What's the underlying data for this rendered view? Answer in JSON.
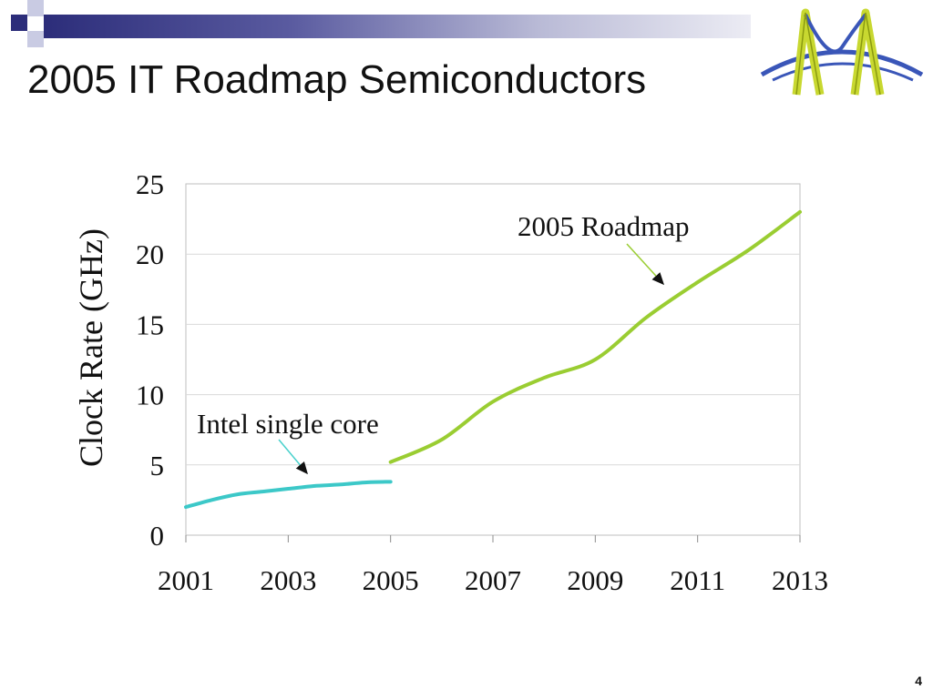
{
  "slide": {
    "title": "2005 IT Roadmap Semiconductors",
    "page_number": "4"
  },
  "colors": {
    "header_dark": "#2c2d7a",
    "deco_light": "#c9cbe3",
    "roadmap_series": "#9acd32",
    "intel_series": "#3cc8c8",
    "grid": "#d9d9d9"
  },
  "chart_data": {
    "type": "line",
    "title": "",
    "xlabel": "",
    "ylabel": "Clock Rate (GHz)",
    "xlim": [
      2001,
      2013
    ],
    "ylim": [
      0,
      25
    ],
    "x_ticks": [
      "2001",
      "2003",
      "2005",
      "2007",
      "2009",
      "2011",
      "2013"
    ],
    "y_ticks": [
      "0",
      "5",
      "10",
      "15",
      "20",
      "25"
    ],
    "grid": true,
    "series": [
      {
        "name": "Intel single core",
        "color": "#3cc8c8",
        "x": [
          2001,
          2001.5,
          2002,
          2002.5,
          2003,
          2003.5,
          2004,
          2004.5,
          2005
        ],
        "y": [
          2.0,
          2.5,
          2.9,
          3.1,
          3.3,
          3.5,
          3.6,
          3.75,
          3.8
        ]
      },
      {
        "name": "2005 Roadmap",
        "color": "#9acd32",
        "x": [
          2005,
          2006,
          2007,
          2008,
          2009,
          2010,
          2011,
          2012,
          2013
        ],
        "y": [
          5.2,
          6.8,
          9.5,
          11.2,
          12.5,
          15.5,
          18.0,
          20.3,
          23.0
        ]
      }
    ],
    "annotations": [
      {
        "text": "Intel single core",
        "series": "Intel single core"
      },
      {
        "text": "2005 Roadmap",
        "series": "2005 Roadmap"
      }
    ]
  }
}
